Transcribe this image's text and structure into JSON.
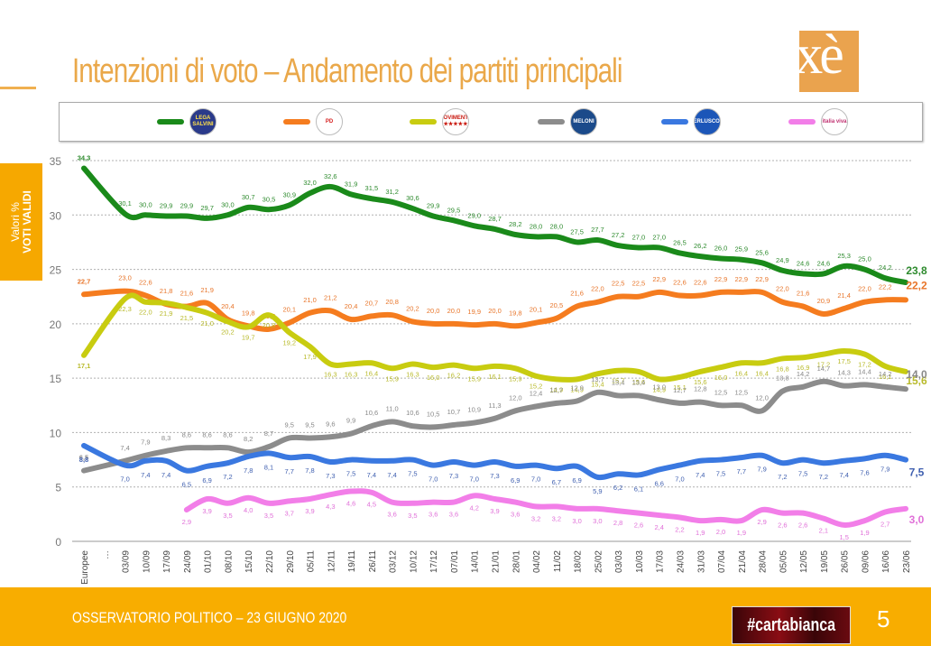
{
  "header": {
    "title": "Intenzioni di voto – Andamento dei partiti principali",
    "logo_text": "ixè"
  },
  "side_tab": {
    "line1": "Valori %",
    "line2": "VOTI VALIDI"
  },
  "footer": {
    "text": "OSSERVATORIO POLITICO – 23 GIUGNO 2020",
    "brand": "#cartabianca",
    "page_number": "5"
  },
  "legend": [
    {
      "name": "Lega",
      "badge": "LEGA SALVINI",
      "color": "#1a8a1a",
      "badge_bg": "#2a3a8a",
      "badge_fg": "#ffe14a"
    },
    {
      "name": "PD",
      "badge": "PD",
      "color": "#f57c1f",
      "badge_bg": "#ffffff",
      "badge_fg": "#d62020"
    },
    {
      "name": "M5S",
      "badge": "MOVIMENTO ★★★★★",
      "color": "#c8cc10",
      "badge_bg": "#ffffff",
      "badge_fg": "#c8160c"
    },
    {
      "name": "Fratelli d'Italia",
      "badge": "MELONI",
      "color": "#8c8c8c",
      "badge_bg": "#1b4a8a",
      "badge_fg": "#ffffff"
    },
    {
      "name": "Forza Italia",
      "badge": "BERLUSCONI",
      "color": "#3a78e0",
      "badge_bg": "#1c56b8",
      "badge_fg": "#ffffff"
    },
    {
      "name": "Italia Viva",
      "badge": "italia viva",
      "color": "#f27ee8",
      "badge_bg": "#ffffff",
      "badge_fg": "#c03070"
    }
  ],
  "chart_data": {
    "type": "line",
    "title": "Intenzioni di voto – Andamento dei partiti principali",
    "ylabel": "Valori % VOTI VALIDI",
    "xlabel": "",
    "ylim": [
      0,
      35
    ],
    "yticks": [
      0,
      5,
      10,
      15,
      20,
      25,
      30,
      35
    ],
    "grid": true,
    "legend_position": "top",
    "categories": [
      "Europee",
      "…",
      "03/09",
      "10/09",
      "17/09",
      "24/09",
      "01/10",
      "08/10",
      "15/10",
      "22/10",
      "29/10",
      "05/11",
      "12/11",
      "19/11",
      "26/11",
      "03/12",
      "10/12",
      "17/12",
      "07/01",
      "14/01",
      "21/01",
      "28/01",
      "04/02",
      "11/02",
      "18/02",
      "25/02",
      "03/03",
      "10/03",
      "17/03",
      "24/03",
      "31/03",
      "07/04",
      "21/04",
      "28/04",
      "05/05",
      "12/05",
      "19/05",
      "26/05",
      "09/06",
      "16/06",
      "23/06"
    ],
    "series": [
      {
        "name": "Lega",
        "color": "#1a8a1a",
        "values": [
          34.3,
          null,
          30.1,
          30.0,
          29.9,
          29.9,
          29.7,
          30.0,
          30.7,
          30.5,
          30.9,
          32.0,
          32.6,
          31.9,
          31.5,
          31.2,
          30.6,
          29.9,
          29.5,
          29.0,
          28.7,
          28.2,
          28.0,
          28.0,
          27.5,
          27.7,
          27.2,
          27.0,
          27.0,
          26.5,
          26.2,
          26.0,
          25.9,
          25.6,
          24.9,
          24.6,
          24.6,
          25.3,
          25.0,
          24.2,
          23.8
        ]
      },
      {
        "name": "PD",
        "color": "#f57c1f",
        "values": [
          22.7,
          null,
          23.0,
          22.6,
          21.8,
          21.6,
          21.9,
          20.4,
          19.8,
          19.5,
          20.1,
          21.0,
          21.2,
          20.4,
          20.7,
          20.8,
          20.2,
          20.0,
          20.0,
          19.9,
          20.0,
          19.8,
          20.1,
          20.5,
          21.6,
          22.0,
          22.5,
          22.5,
          22.9,
          22.6,
          22.6,
          22.9,
          22.9,
          22.9,
          22.0,
          21.6,
          20.9,
          21.4,
          22.0,
          22.2,
          22.2
        ]
      },
      {
        "name": "M5S",
        "color": "#c8cc10",
        "values": [
          17.1,
          null,
          22.3,
          22.0,
          21.9,
          21.5,
          21.0,
          20.2,
          19.7,
          20.8,
          19.2,
          17.9,
          16.3,
          16.3,
          16.4,
          15.9,
          16.3,
          16.0,
          16.2,
          15.9,
          16.1,
          15.9,
          15.2,
          14.9,
          14.9,
          15.4,
          15.7,
          15.6,
          14.9,
          15.1,
          15.6,
          16.0,
          16.4,
          16.4,
          16.8,
          16.9,
          17.2,
          17.5,
          17.2,
          16.1,
          15.6
        ]
      },
      {
        "name": "Fratelli d'Italia",
        "color": "#8c8c8c",
        "values": [
          6.5,
          null,
          7.4,
          7.9,
          8.3,
          8.6,
          8.6,
          8.6,
          8.2,
          8.7,
          9.5,
          9.5,
          9.6,
          9.9,
          10.6,
          11.0,
          10.6,
          10.5,
          10.7,
          10.9,
          11.3,
          12.0,
          12.4,
          12.7,
          12.9,
          13.7,
          13.4,
          13.4,
          13.0,
          12.7,
          12.8,
          12.5,
          12.5,
          12.0,
          13.8,
          14.2,
          14.7,
          14.3,
          14.4,
          14.2,
          14.0
        ]
      },
      {
        "name": "Forza Italia",
        "color": "#3a78e0",
        "values": [
          8.8,
          null,
          7.0,
          7.4,
          7.4,
          6.5,
          6.9,
          7.2,
          7.8,
          8.1,
          7.7,
          7.8,
          7.3,
          7.5,
          7.4,
          7.4,
          7.5,
          7.0,
          7.3,
          7.0,
          7.3,
          6.9,
          7.0,
          6.7,
          6.9,
          5.9,
          6.2,
          6.1,
          6.6,
          7.0,
          7.4,
          7.5,
          7.7,
          7.9,
          7.2,
          7.5,
          7.2,
          7.4,
          7.6,
          7.9,
          7.5
        ]
      },
      {
        "name": "Italia Viva",
        "color": "#f27ee8",
        "values": [
          null,
          null,
          null,
          null,
          null,
          2.9,
          3.9,
          3.5,
          4.0,
          3.5,
          3.7,
          3.9,
          4.3,
          4.6,
          4.5,
          3.6,
          3.5,
          3.6,
          3.6,
          4.2,
          3.9,
          3.6,
          3.2,
          3.2,
          3.0,
          3.0,
          2.8,
          2.6,
          2.4,
          2.2,
          1.9,
          2.0,
          1.9,
          2.9,
          2.6,
          2.6,
          2.1,
          1.5,
          1.9,
          2.7,
          3.0
        ]
      }
    ]
  }
}
